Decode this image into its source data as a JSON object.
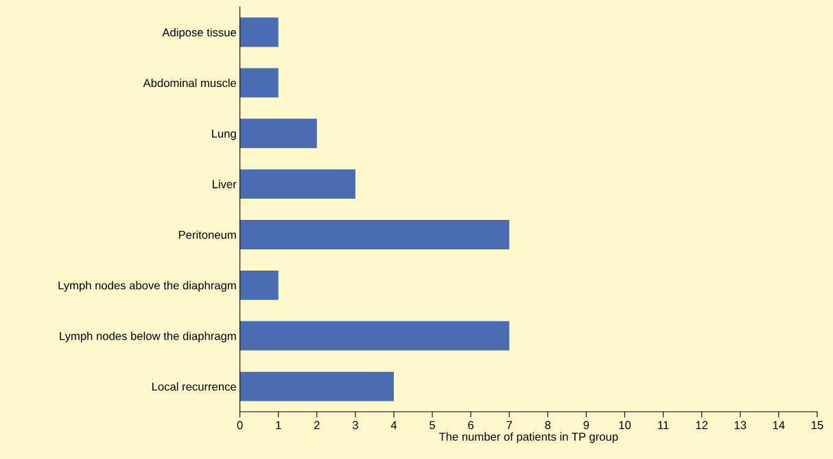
{
  "chart_data": {
    "type": "bar",
    "orientation": "horizontal",
    "xlabel": "The number of patients in TP group",
    "categories": [
      "Adipose tissue",
      "Abdominal muscle",
      "Lung",
      "Liver",
      "Peritoneum",
      "Lymph nodes above the diaphragm",
      "Lymph nodes below the diaphragm",
      "Local recurrence"
    ],
    "values": [
      1,
      1,
      2,
      3,
      7,
      1,
      7,
      4
    ],
    "color": "#4a6cb3",
    "xlim": [
      0,
      15
    ],
    "xticks": [
      0,
      1,
      2,
      3,
      4,
      5,
      6,
      7,
      8,
      9,
      10,
      11,
      12,
      13,
      14,
      15
    ],
    "grid": false
  }
}
